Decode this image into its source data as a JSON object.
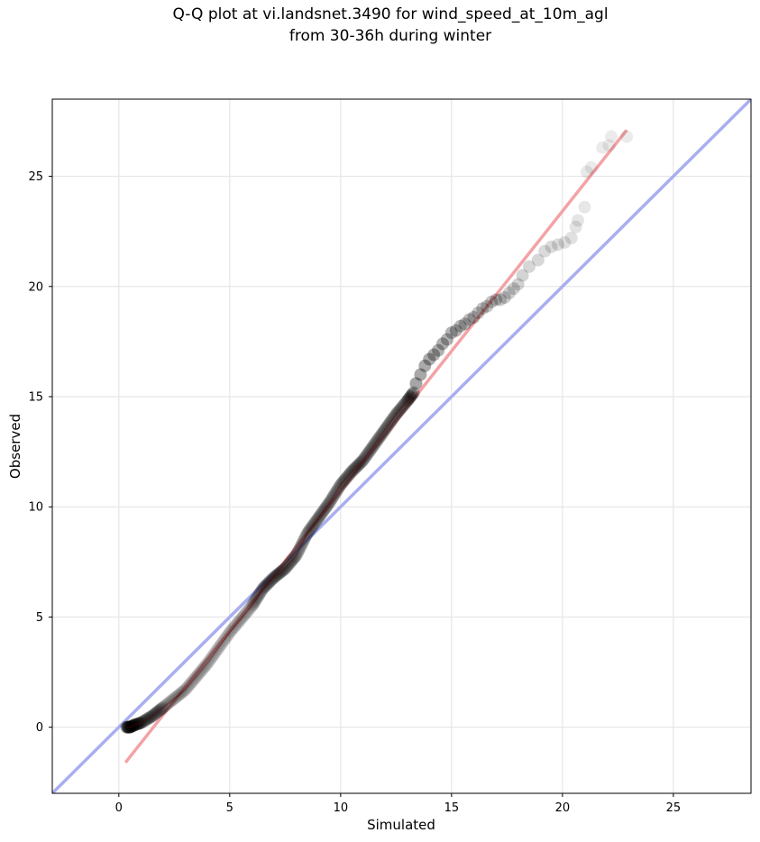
{
  "figure": {
    "title_line1": "Q-Q plot at vi.landsnet.3490 for wind_speed_at_10m_agl",
    "title_line2": "from 30-36h during winter"
  },
  "chart_data": {
    "type": "scatter",
    "xlabel": "Simulated",
    "ylabel": "Observed",
    "xlim": [
      -3.0,
      28.5
    ],
    "ylim": [
      -3.0,
      28.5
    ],
    "xticks": [
      0,
      5,
      10,
      15,
      20,
      25
    ],
    "yticks": [
      0,
      5,
      10,
      15,
      20,
      25
    ],
    "grid": true,
    "colors": {
      "points": "#000000",
      "identity_line": "#a9aef0",
      "fit_line": "#f2a3a6",
      "grid": "#e6e6e6"
    },
    "identity_line": {
      "x": [
        -3.0,
        28.5
      ],
      "y": [
        -3.0,
        28.5
      ]
    },
    "fit_line": {
      "x": [
        0.3,
        22.9
      ],
      "y": [
        -1.6,
        27.1
      ]
    },
    "quantile_curve": {
      "x": [
        0.35,
        0.5,
        0.7,
        1.0,
        1.5,
        2.0,
        3.0,
        4.0,
        5.0,
        6.0,
        6.5,
        7.0,
        7.5,
        8.0,
        8.5,
        9.0,
        9.5,
        10.0,
        10.5,
        11.0,
        11.5,
        12.0,
        12.5,
        13.0,
        13.3
      ],
      "y": [
        0.0,
        0.0,
        0.1,
        0.2,
        0.5,
        0.9,
        1.7,
        2.9,
        4.3,
        5.5,
        6.3,
        6.8,
        7.2,
        7.8,
        8.8,
        9.5,
        10.2,
        11.0,
        11.6,
        12.1,
        12.8,
        13.5,
        14.2,
        14.8,
        15.2
      ]
    },
    "tail_points": {
      "x": [
        13.4,
        13.6,
        13.8,
        14.0,
        14.2,
        14.4,
        14.6,
        14.8,
        15.0,
        15.2,
        15.4,
        15.6,
        15.8,
        16.0,
        16.2,
        16.4,
        16.6,
        16.8,
        17.0,
        17.2,
        17.4,
        17.6,
        17.8,
        18.0,
        18.2,
        18.5,
        18.9,
        19.2,
        19.5,
        19.8,
        20.1,
        20.4,
        20.6,
        20.7,
        21.0,
        21.1,
        21.3,
        21.8,
        22.1,
        22.2,
        22.9
      ],
      "y": [
        15.6,
        16.0,
        16.4,
        16.7,
        16.9,
        17.1,
        17.4,
        17.6,
        17.9,
        18.0,
        18.2,
        18.3,
        18.5,
        18.6,
        18.8,
        19.0,
        19.1,
        19.3,
        19.4,
        19.4,
        19.5,
        19.7,
        19.9,
        20.1,
        20.5,
        20.9,
        21.2,
        21.6,
        21.8,
        21.9,
        22.0,
        22.2,
        22.7,
        23.0,
        23.6,
        25.2,
        25.4,
        26.3,
        26.4,
        26.8,
        26.8
      ]
    }
  }
}
